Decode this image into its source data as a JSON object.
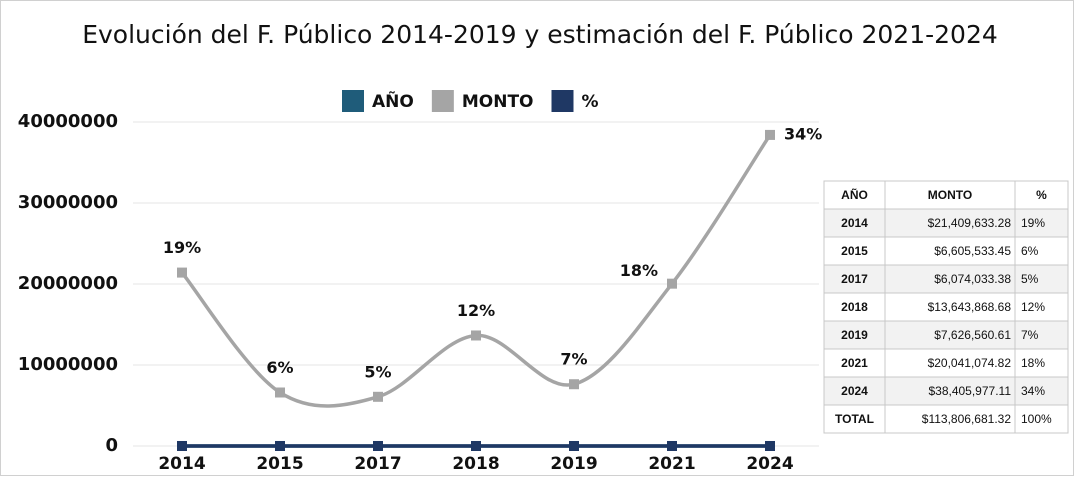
{
  "chart_data": {
    "type": "line",
    "title": "Evolución del F. Público 2014-2019 y estimación del F. Público 2021-2024",
    "categories": [
      "2014",
      "2015",
      "2017",
      "2018",
      "2019",
      "2021",
      "2024"
    ],
    "series": [
      {
        "name": "AÑO",
        "color": "#1f5c7a",
        "values": [
          2014,
          2015,
          2017,
          2018,
          2019,
          2021,
          2024
        ]
      },
      {
        "name": "MONTO",
        "color": "#a5a5a5",
        "values": [
          21409633.28,
          6605533.45,
          6074033.38,
          13643868.68,
          7626560.61,
          20041074.82,
          38405977.11
        ]
      },
      {
        "name": "%",
        "color": "#1f3864",
        "values": [
          19,
          6,
          5,
          12,
          7,
          18,
          34
        ],
        "value_labels": [
          "19%",
          "6%",
          "5%",
          "12%",
          "7%",
          "18%",
          "34%"
        ]
      }
    ],
    "ylim": [
      0,
      40000000
    ],
    "yticks": [
      0,
      10000000,
      20000000,
      30000000,
      40000000
    ],
    "grid": true,
    "legend": "top",
    "smooth": true
  },
  "table": {
    "header": [
      "AÑO",
      "MONTO",
      "%"
    ],
    "rows": [
      [
        "2014",
        "$21,409,633.28",
        "19%"
      ],
      [
        "2015",
        "$6,605,533.45",
        "6%"
      ],
      [
        "2017",
        "$6,074,033.38",
        "5%"
      ],
      [
        "2018",
        "$13,643,868.68",
        "12%"
      ],
      [
        "2019",
        "$7,626,560.61",
        "7%"
      ],
      [
        "2021",
        "$20,041,074.82",
        "18%"
      ],
      [
        "2024",
        "$38,405,977.11",
        "34%"
      ],
      [
        "TOTAL",
        "$113,806,681.32",
        "100%"
      ]
    ]
  }
}
